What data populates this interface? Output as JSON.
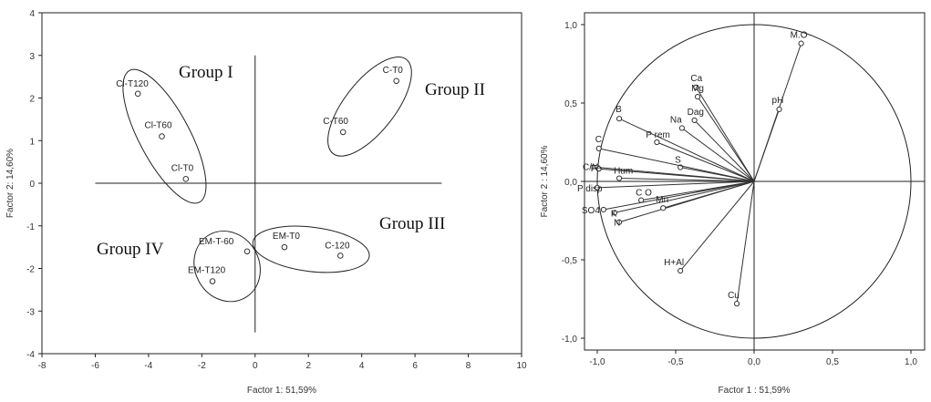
{
  "chart_data": [
    {
      "type": "scatter",
      "title": "",
      "xlabel": "Factor 1: 51,59%",
      "ylabel": "Factor 2: 14,60%",
      "xlim": [
        -8,
        10
      ],
      "ylim": [
        -4,
        4
      ],
      "xticks": [
        -8,
        -6,
        -4,
        -2,
        0,
        2,
        4,
        6,
        8,
        10
      ],
      "yticks": [
        4,
        3,
        2,
        1,
        0,
        -1,
        -2,
        -3,
        -4
      ],
      "points": [
        {
          "label": "Cl-T120",
          "x": -4.4,
          "y": 2.1
        },
        {
          "label": "Cl-T60",
          "x": -3.5,
          "y": 1.1
        },
        {
          "label": "Cl-T0",
          "x": -2.6,
          "y": 0.1
        },
        {
          "label": "C-T0",
          "x": 5.3,
          "y": 2.4
        },
        {
          "label": "C-T60",
          "x": 3.3,
          "y": 1.2
        },
        {
          "label": "EM-T0",
          "x": 1.1,
          "y": -1.5
        },
        {
          "label": "C-120",
          "x": 3.2,
          "y": -1.7
        },
        {
          "label": "EM-T-60",
          "x": -0.3,
          "y": -1.6
        },
        {
          "label": "EM-T120",
          "x": -1.6,
          "y": -2.3
        }
      ],
      "groups": [
        {
          "name": "Group I"
        },
        {
          "name": "Group II"
        },
        {
          "name": "Group III"
        },
        {
          "name": "Group IV"
        }
      ],
      "reference_lines": {
        "x": 0,
        "y": 0,
        "x_range": [
          -6,
          7
        ],
        "y_range": [
          -3.5,
          3
        ]
      }
    },
    {
      "type": "scatter",
      "title": "",
      "xlabel": "Factor 1 : 51,59%",
      "ylabel": "Factor 2 : 14,60%",
      "xlim": [
        -1.0,
        1.0
      ],
      "ylim": [
        -1.0,
        1.0
      ],
      "xticks": [
        "-1,0",
        "-0,5",
        "0,0",
        "0,5",
        "1,0"
      ],
      "yticks": [
        "1,0",
        "0,5",
        "0,0",
        "-0,5",
        "-1,0"
      ],
      "unit_circle": true,
      "vectors": [
        {
          "label": "M.O",
          "x": 0.3,
          "y": 0.88
        },
        {
          "label": "pH",
          "x": 0.16,
          "y": 0.46
        },
        {
          "label": "Ca",
          "x": -0.37,
          "y": 0.6
        },
        {
          "label": "Mg",
          "x": -0.36,
          "y": 0.54
        },
        {
          "label": "Dag",
          "x": -0.38,
          "y": 0.39
        },
        {
          "label": "Na",
          "x": -0.46,
          "y": 0.34
        },
        {
          "label": "B",
          "x": -0.86,
          "y": 0.4
        },
        {
          "label": "P rem",
          "x": -0.62,
          "y": 0.25
        },
        {
          "label": "S",
          "x": -0.47,
          "y": 0.09
        },
        {
          "label": "C",
          "x": -0.99,
          "y": 0.21
        },
        {
          "label": "C/N",
          "x": -1.0,
          "y": 0.09
        },
        {
          "label": "Fe",
          "x": -0.99,
          "y": 0.08
        },
        {
          "label": "Hum",
          "x": -0.86,
          "y": 0.02
        },
        {
          "label": "P disp",
          "x": -1.0,
          "y": -0.04
        },
        {
          "label": "C O",
          "x": -0.72,
          "y": -0.12
        },
        {
          "label": "SO4",
          "x": -0.96,
          "y": -0.18
        },
        {
          "label": "K",
          "x": -0.89,
          "y": -0.2
        },
        {
          "label": "N",
          "x": -0.86,
          "y": -0.26
        },
        {
          "label": "Mn",
          "x": -0.58,
          "y": -0.17
        },
        {
          "label": "H+Al",
          "x": -0.47,
          "y": -0.57
        },
        {
          "label": "Cu",
          "x": -0.11,
          "y": -0.78
        }
      ]
    }
  ]
}
